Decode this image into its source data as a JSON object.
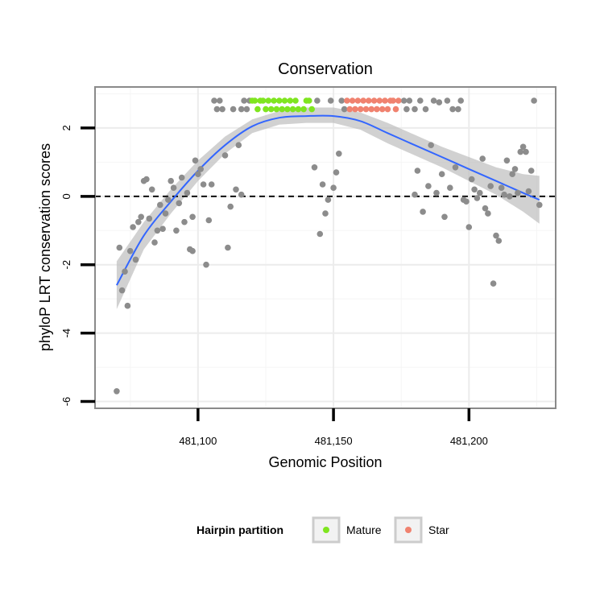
{
  "chart_data": {
    "type": "scatter",
    "title": "Conservation",
    "xlabel": "Genomic Position",
    "ylabel": "phyloP LRT conservation scores",
    "xlim": [
      481062,
      481232
    ],
    "ylim": [
      -6.2,
      3.2
    ],
    "x_ticks": [
      481100,
      481150,
      481200
    ],
    "x_tick_labels": [
      "481,100",
      "481,150",
      "481,200"
    ],
    "y_ticks": [
      -6,
      -4,
      -2,
      0,
      2
    ],
    "y_tick_labels": [
      "-6",
      "-4",
      "-2",
      "0",
      "2"
    ],
    "grid": true,
    "reference_line": {
      "y": 0,
      "style": "dashed"
    },
    "legend": {
      "title": "Hairpin partition",
      "placement": "bottom",
      "entries": [
        {
          "name": "Mature",
          "color": "#7FE51F"
        },
        {
          "name": "Star",
          "color": "#F0826F"
        }
      ]
    },
    "colors": {
      "other": "#8C8C8C",
      "smooth": "#3366FF",
      "band": "#BEBEBE",
      "mature": "#7FE51F",
      "star": "#F0826F"
    },
    "series": [
      {
        "group": "other",
        "points": [
          [
            481070,
            -5.7
          ],
          [
            481071,
            -1.5
          ],
          [
            481072,
            -2.75
          ],
          [
            481073,
            -2.2
          ],
          [
            481074,
            -3.2
          ],
          [
            481075,
            -1.6
          ],
          [
            481076,
            -0.9
          ],
          [
            481077,
            -1.85
          ],
          [
            481078,
            -0.75
          ],
          [
            481079,
            -0.6
          ],
          [
            481080,
            0.45
          ],
          [
            481081,
            0.5
          ],
          [
            481082,
            -0.65
          ],
          [
            481083,
            0.2
          ],
          [
            481084,
            -1.35
          ],
          [
            481085,
            -1.0
          ],
          [
            481086,
            -0.25
          ],
          [
            481087,
            -0.95
          ],
          [
            481088,
            -0.5
          ],
          [
            481089,
            -0.1
          ],
          [
            481090,
            0.45
          ],
          [
            481091,
            0.25
          ],
          [
            481092,
            -1.0
          ],
          [
            481093,
            -0.2
          ],
          [
            481094,
            0.55
          ],
          [
            481095,
            -0.75
          ],
          [
            481096,
            0.1
          ],
          [
            481097,
            -1.55
          ],
          [
            481098,
            -0.6
          ],
          [
            481098,
            -1.6
          ],
          [
            481099,
            1.05
          ],
          [
            481100,
            0.65
          ],
          [
            481101,
            0.8
          ],
          [
            481102,
            0.35
          ],
          [
            481103,
            -2.0
          ],
          [
            481104,
            -0.7
          ],
          [
            481105,
            0.35
          ],
          [
            481106,
            2.8
          ],
          [
            481107,
            2.55
          ],
          [
            481108,
            2.8
          ],
          [
            481109,
            2.55
          ],
          [
            481110,
            1.2
          ],
          [
            481111,
            -1.5
          ],
          [
            481112,
            -0.3
          ],
          [
            481113,
            2.55
          ],
          [
            481114,
            0.2
          ],
          [
            481115,
            1.5
          ],
          [
            481116,
            0.05
          ],
          [
            481116,
            2.55
          ],
          [
            481117,
            2.8
          ],
          [
            481118,
            2.55
          ],
          [
            481119,
            2.8
          ],
          [
            481143,
            0.85
          ],
          [
            481144,
            2.8
          ],
          [
            481145,
            -1.1
          ],
          [
            481146,
            0.35
          ],
          [
            481147,
            -0.5
          ],
          [
            481148,
            -0.1
          ],
          [
            481149,
            2.8
          ],
          [
            481150,
            0.25
          ],
          [
            481151,
            0.7
          ],
          [
            481152,
            1.25
          ],
          [
            481153,
            2.8
          ],
          [
            481154,
            2.55
          ],
          [
            481176,
            2.8
          ],
          [
            481177,
            2.55
          ],
          [
            481178,
            2.8
          ],
          [
            481180,
            0.05
          ],
          [
            481180,
            2.55
          ],
          [
            481181,
            0.75
          ],
          [
            481182,
            2.8
          ],
          [
            481183,
            -0.45
          ],
          [
            481184,
            2.55
          ],
          [
            481185,
            0.3
          ],
          [
            481186,
            1.5
          ],
          [
            481187,
            2.8
          ],
          [
            481188,
            0.1
          ],
          [
            481189,
            2.75
          ],
          [
            481190,
            0.65
          ],
          [
            481191,
            -0.6
          ],
          [
            481192,
            2.8
          ],
          [
            481193,
            0.25
          ],
          [
            481194,
            2.55
          ],
          [
            481195,
            0.85
          ],
          [
            481196,
            2.55
          ],
          [
            481197,
            2.8
          ],
          [
            481198,
            -0.1
          ],
          [
            481199,
            -0.15
          ],
          [
            481200,
            -0.9
          ],
          [
            481201,
            0.5
          ],
          [
            481202,
            0.2
          ],
          [
            481203,
            -0.05
          ],
          [
            481204,
            0.1
          ],
          [
            481205,
            1.1
          ],
          [
            481206,
            -0.35
          ],
          [
            481207,
            -0.5
          ],
          [
            481208,
            0.3
          ],
          [
            481209,
            -2.55
          ],
          [
            481210,
            -1.15
          ],
          [
            481211,
            -1.3
          ],
          [
            481212,
            0.25
          ],
          [
            481213,
            0.05
          ],
          [
            481214,
            1.05
          ],
          [
            481215,
            0.0
          ],
          [
            481216,
            0.65
          ],
          [
            481217,
            0.8
          ],
          [
            481218,
            0.1
          ],
          [
            481219,
            1.3
          ],
          [
            481220,
            1.45
          ],
          [
            481221,
            1.3
          ],
          [
            481222,
            0.15
          ],
          [
            481223,
            0.75
          ],
          [
            481224,
            2.8
          ],
          [
            481226,
            -0.25
          ]
        ]
      },
      {
        "group": "mature",
        "name": "Mature",
        "points": [
          [
            481120,
            2.8
          ],
          [
            481121,
            2.8
          ],
          [
            481122,
            2.55
          ],
          [
            481123,
            2.8
          ],
          [
            481124,
            2.8
          ],
          [
            481125,
            2.55
          ],
          [
            481126,
            2.8
          ],
          [
            481127,
            2.55
          ],
          [
            481128,
            2.8
          ],
          [
            481129,
            2.55
          ],
          [
            481130,
            2.8
          ],
          [
            481131,
            2.55
          ],
          [
            481132,
            2.8
          ],
          [
            481133,
            2.55
          ],
          [
            481134,
            2.8
          ],
          [
            481135,
            2.55
          ],
          [
            481136,
            2.8
          ],
          [
            481137,
            2.55
          ],
          [
            481139,
            2.55
          ],
          [
            481140,
            2.8
          ],
          [
            481141,
            2.8
          ],
          [
            481142,
            2.55
          ]
        ]
      },
      {
        "group": "star",
        "name": "Star",
        "points": [
          [
            481155,
            2.8
          ],
          [
            481156,
            2.55
          ],
          [
            481157,
            2.8
          ],
          [
            481158,
            2.55
          ],
          [
            481159,
            2.8
          ],
          [
            481160,
            2.55
          ],
          [
            481161,
            2.8
          ],
          [
            481162,
            2.55
          ],
          [
            481163,
            2.8
          ],
          [
            481164,
            2.55
          ],
          [
            481165,
            2.8
          ],
          [
            481166,
            2.55
          ],
          [
            481167,
            2.8
          ],
          [
            481168,
            2.55
          ],
          [
            481169,
            2.8
          ],
          [
            481170,
            2.55
          ],
          [
            481171,
            2.8
          ],
          [
            481172,
            2.8
          ],
          [
            481173,
            2.55
          ],
          [
            481174,
            2.8
          ]
        ]
      }
    ],
    "smooth": {
      "x": [
        481070,
        481080,
        481090,
        481100,
        481110,
        481120,
        481130,
        481140,
        481150,
        481160,
        481170,
        481180,
        481190,
        481200,
        481210,
        481220,
        481226
      ],
      "y": [
        -2.6,
        -1.15,
        -0.15,
        0.75,
        1.5,
        2.05,
        2.3,
        2.35,
        2.35,
        2.2,
        1.85,
        1.5,
        1.15,
        0.8,
        0.45,
        0.1,
        -0.1
      ],
      "lo": [
        -3.3,
        -1.55,
        -0.5,
        0.45,
        1.25,
        1.85,
        2.1,
        2.15,
        2.15,
        1.95,
        1.55,
        1.2,
        0.85,
        0.45,
        0.05,
        -0.45,
        -0.8
      ],
      "hi": [
        -1.9,
        -0.75,
        0.2,
        1.05,
        1.75,
        2.25,
        2.5,
        2.6,
        2.6,
        2.45,
        2.15,
        1.8,
        1.45,
        1.15,
        0.85,
        0.65,
        0.6
      ]
    }
  }
}
